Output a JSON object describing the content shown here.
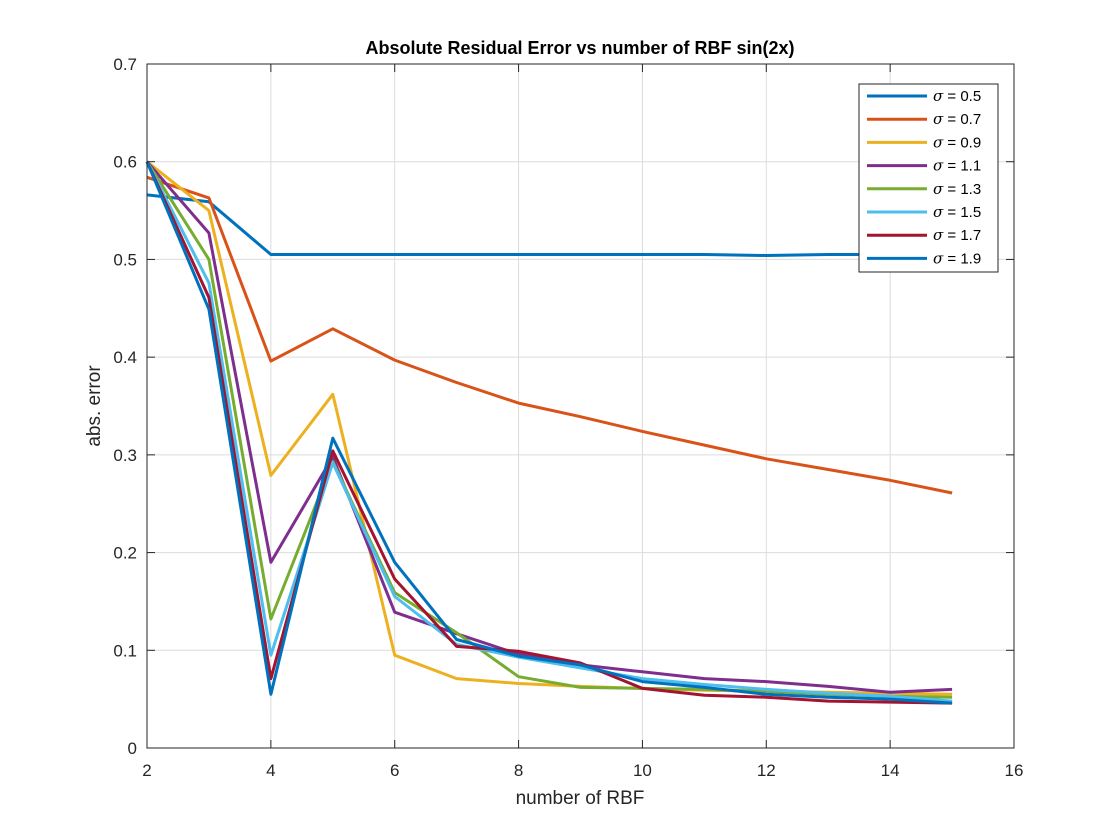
{
  "chart_data": {
    "type": "line",
    "title": "Absolute Residual Error vs number of RBF sin(2x)",
    "xlabel": "number of RBF",
    "ylabel": "abs. error",
    "xlim": [
      2,
      16
    ],
    "ylim": [
      0,
      0.7
    ],
    "xticks": [
      2,
      4,
      6,
      8,
      10,
      12,
      14,
      16
    ],
    "yticks": [
      0,
      0.1,
      0.2,
      0.3,
      0.4,
      0.5,
      0.6,
      0.7
    ],
    "grid": true,
    "legend_position": "top-right",
    "x": [
      2,
      3,
      4,
      5,
      6,
      7,
      8,
      9,
      10,
      11,
      12,
      13,
      14,
      15
    ],
    "series": [
      {
        "name": "σ = 0.5",
        "sigma": "σ",
        "eq": " = 0.5",
        "color": "#0072BD",
        "values": [
          0.566,
          0.559,
          0.505,
          0.505,
          0.505,
          0.505,
          0.505,
          0.505,
          0.505,
          0.505,
          0.504,
          0.505,
          0.505,
          0.505
        ]
      },
      {
        "name": "σ = 0.7",
        "sigma": "σ",
        "eq": " = 0.7",
        "color": "#D95319",
        "values": [
          0.584,
          0.563,
          0.396,
          0.429,
          0.397,
          0.374,
          0.353,
          0.339,
          0.324,
          0.31,
          0.296,
          0.285,
          0.274,
          0.261
        ]
      },
      {
        "name": "σ = 0.9",
        "sigma": "σ",
        "eq": " = 0.9",
        "color": "#EDB120",
        "values": [
          0.6,
          0.55,
          0.279,
          0.362,
          0.095,
          0.071,
          0.066,
          0.063,
          0.061,
          0.059,
          0.058,
          0.057,
          0.056,
          0.055
        ]
      },
      {
        "name": "σ = 1.1",
        "sigma": "σ",
        "eq": " = 1.1",
        "color": "#7E2F8E",
        "values": [
          0.6,
          0.527,
          0.19,
          0.298,
          0.139,
          0.117,
          0.096,
          0.085,
          0.078,
          0.071,
          0.068,
          0.063,
          0.057,
          0.06
        ]
      },
      {
        "name": "σ = 1.3",
        "sigma": "σ",
        "eq": " = 1.3",
        "color": "#77AC30",
        "values": [
          0.6,
          0.5,
          0.132,
          0.293,
          0.159,
          0.118,
          0.073,
          0.062,
          0.061,
          0.06,
          0.058,
          0.055,
          0.053,
          0.052
        ]
      },
      {
        "name": "σ = 1.5",
        "sigma": "σ",
        "eq": " = 1.5",
        "color": "#4DBEEE",
        "values": [
          0.6,
          0.476,
          0.095,
          0.292,
          0.155,
          0.106,
          0.093,
          0.082,
          0.071,
          0.065,
          0.06,
          0.056,
          0.053,
          0.048
        ]
      },
      {
        "name": "σ = 1.7",
        "sigma": "σ",
        "eq": " = 1.7",
        "color": "#A2142F",
        "values": [
          0.6,
          0.461,
          0.071,
          0.304,
          0.173,
          0.104,
          0.099,
          0.087,
          0.061,
          0.054,
          0.052,
          0.048,
          0.047,
          0.046
        ]
      },
      {
        "name": "σ = 1.9",
        "sigma": "σ",
        "eq": " = 1.9",
        "color": "#0072BD",
        "values": [
          0.6,
          0.449,
          0.055,
          0.317,
          0.19,
          0.111,
          0.094,
          0.085,
          0.068,
          0.062,
          0.055,
          0.052,
          0.05,
          0.046
        ]
      }
    ]
  }
}
